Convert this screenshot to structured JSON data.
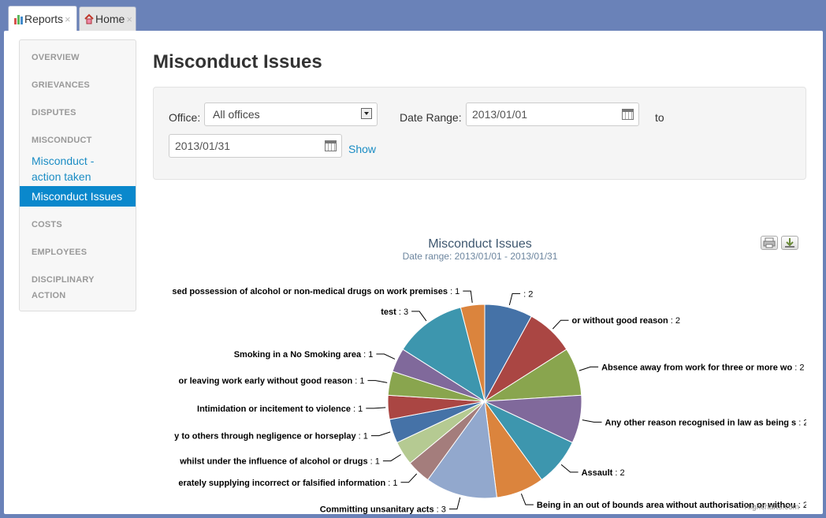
{
  "tabs": [
    {
      "label": "Reports",
      "close": "×"
    },
    {
      "label": "Home",
      "close": "×"
    }
  ],
  "sidebar": {
    "overview": "OVERVIEW",
    "grievances": "GRIEVANCES",
    "disputes": "DISPUTES",
    "misconduct": "MISCONDUCT",
    "misconduct_action_1": "Misconduct -",
    "misconduct_action_2": "action taken",
    "misconduct_issues": "Misconduct Issues",
    "costs": "COSTS",
    "employees": "EMPLOYEES",
    "disciplinary_1": "DISCIPLINARY",
    "disciplinary_2": "ACTION"
  },
  "page": {
    "title": "Misconduct Issues"
  },
  "filters": {
    "office_label": "Office:",
    "office_value": "All offices",
    "date_range_label": "Date Range:",
    "date_from": "2013/01/01",
    "to_label": "to",
    "date_to": "2013/01/31",
    "show_label": "Show"
  },
  "credits": "Highcharts.com",
  "colors": {
    "accent": "#0a88cc",
    "link": "#1a8cc4"
  },
  "chart_data": {
    "type": "pie",
    "title": "Misconduct Issues",
    "subtitle": "Date range: 2013/01/01 - 2013/01/31",
    "slices": [
      {
        "label": "",
        "value": 2,
        "color": "#4572a7"
      },
      {
        "label": "or without good reason",
        "value": 2,
        "color": "#aa4643"
      },
      {
        "label": "Absence away from work for three or more wo",
        "value": 2,
        "color": "#89a54e"
      },
      {
        "label": "Any other reason recognised in law as being s",
        "value": 2,
        "color": "#80699b"
      },
      {
        "label": "Assault",
        "value": 2,
        "color": "#3d96ae"
      },
      {
        "label": "Being in an out of bounds area without authorisation or withou",
        "value": 2,
        "color": "#db843d"
      },
      {
        "label": "Committing unsanitary acts",
        "value": 3,
        "color": "#92a8cd"
      },
      {
        "label": "erately supplying incorrect or falsified information",
        "value": 1,
        "color": "#a47d7c"
      },
      {
        "label": "whilst under the influence of alcohol or drugs",
        "value": 1,
        "color": "#b5ca92"
      },
      {
        "label": "y to others through negligence or horseplay",
        "value": 1,
        "color": "#4572a7"
      },
      {
        "label": "Intimidation or incitement to violence",
        "value": 1,
        "color": "#aa4643"
      },
      {
        "label": "or leaving work early without good reason",
        "value": 1,
        "color": "#89a54e"
      },
      {
        "label": "Smoking in a No Smoking area",
        "value": 1,
        "color": "#80699b"
      },
      {
        "label": "test",
        "value": 3,
        "color": "#3d96ae"
      },
      {
        "label": "sed possession of alcohol or non-medical drugs on work premises",
        "value": 1,
        "color": "#db843d"
      }
    ]
  }
}
